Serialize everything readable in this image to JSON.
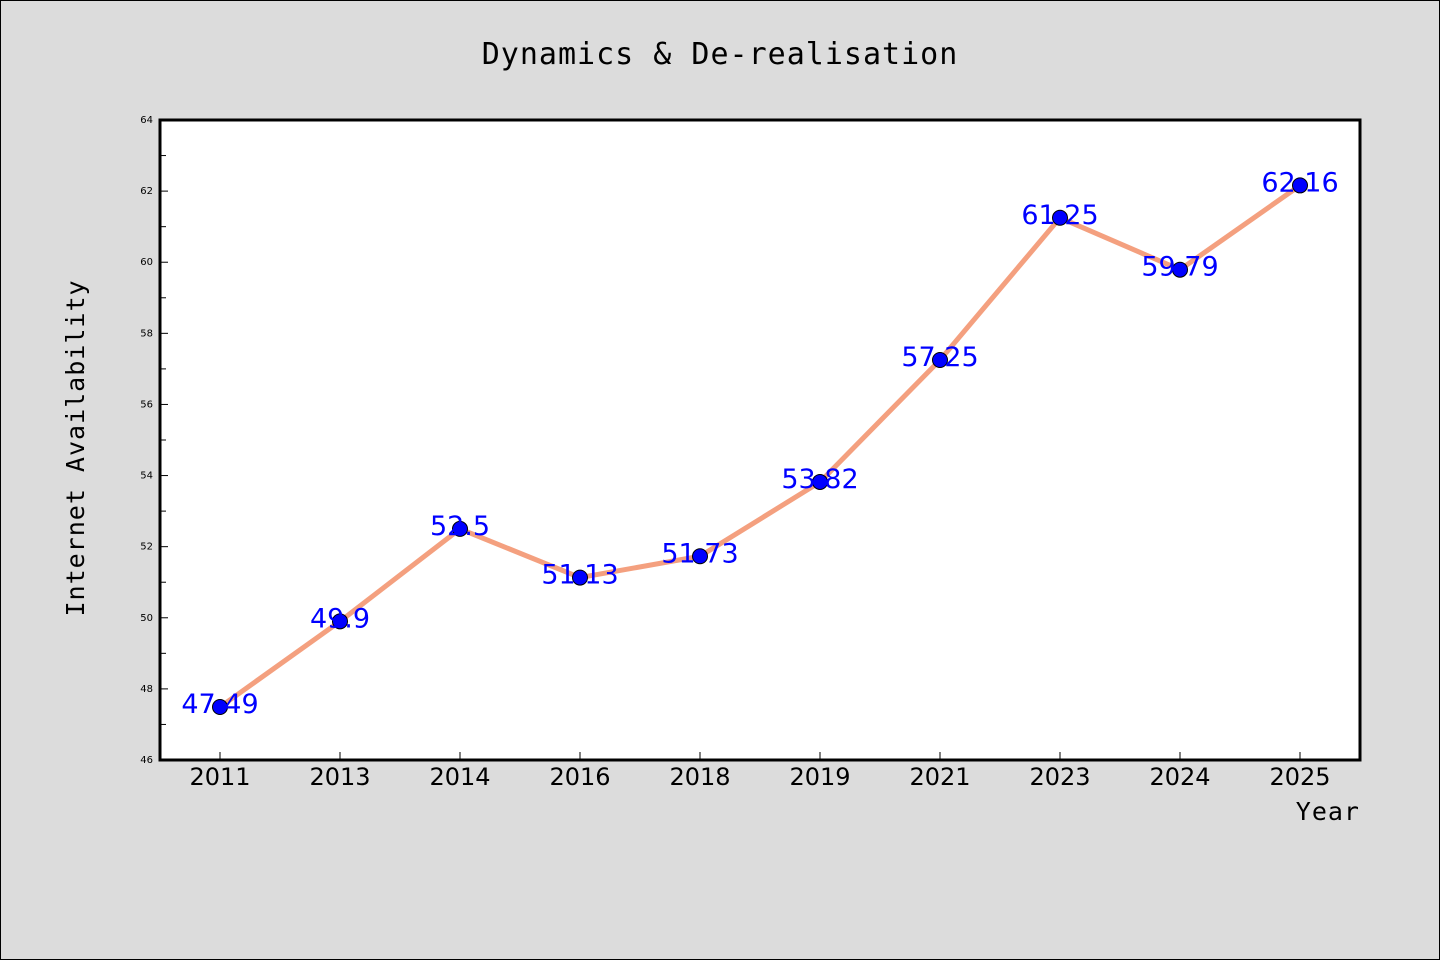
{
  "chart_data": {
    "type": "line",
    "title": "Dynamics & De-realisation",
    "xlabel": "Year",
    "ylabel": "Internet Availability",
    "categories": [
      "2011",
      "2013",
      "2014",
      "2016",
      "2018",
      "2019",
      "2021",
      "2023",
      "2024",
      "2025"
    ],
    "series": [
      {
        "values": [
          47.49,
          49.9,
          52.5,
          51.13,
          51.73,
          53.82,
          57.25,
          61.25,
          59.79,
          62.16
        ],
        "data_labels": [
          "47.49",
          "49.9",
          "52.5",
          "51.13",
          "51.73",
          "53.82",
          "57.25",
          "61.25",
          "59.79",
          "62.16"
        ]
      }
    ],
    "ylim": [
      46,
      64
    ],
    "yticks": [
      "46",
      "48",
      "50",
      "52",
      "54",
      "56",
      "58",
      "60",
      "62",
      "64"
    ],
    "grid": false,
    "legend": "none",
    "colors": {
      "line": "#f4a07f",
      "marker": "#0000ff",
      "data_label": "#0000ff",
      "plot_background": "#ffffff",
      "figure_background": "#dcdcdc"
    }
  }
}
